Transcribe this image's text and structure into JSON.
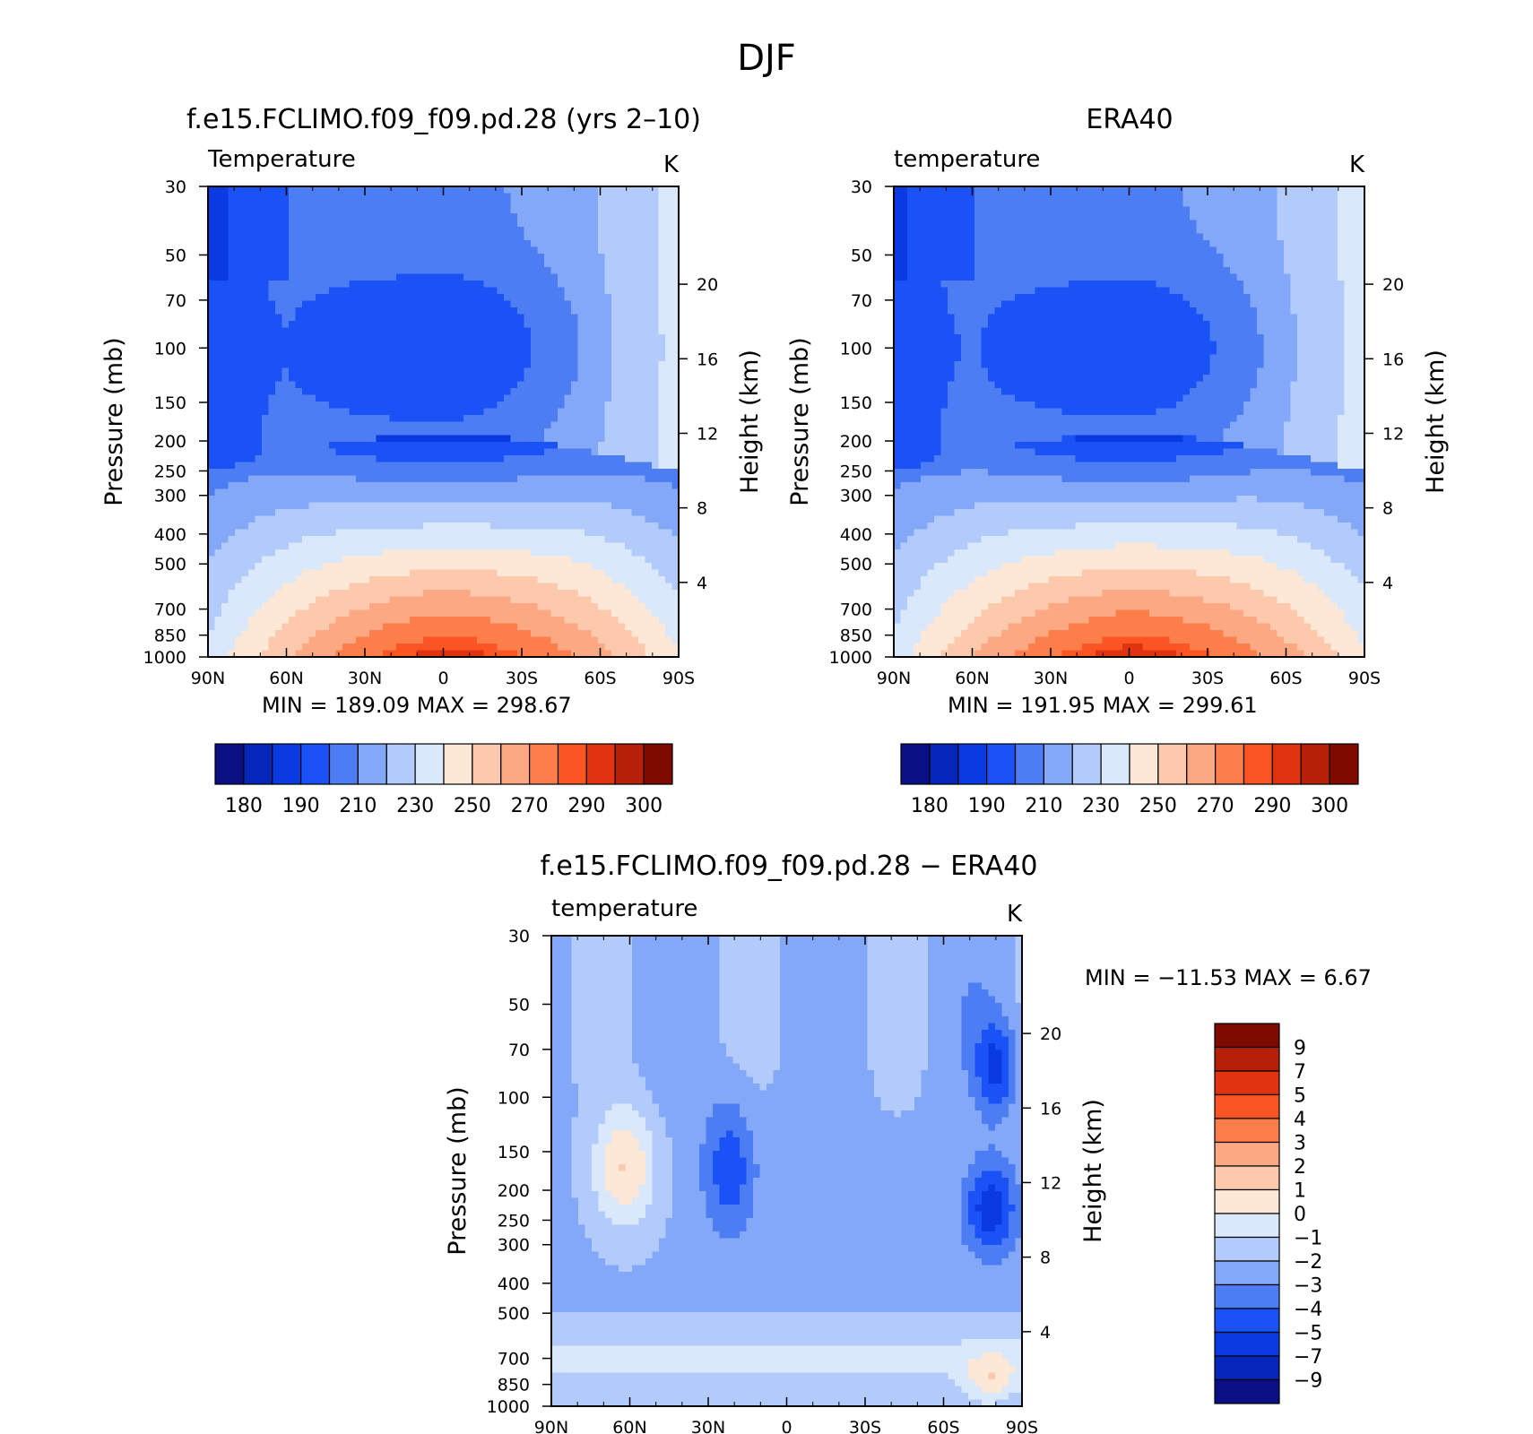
{
  "figure": {
    "title": "DJF"
  },
  "colors": {
    "abs_palette": [
      "#0b0f84",
      "#0526b8",
      "#0a3be0",
      "#1a52f5",
      "#4c7df2",
      "#82a8f7",
      "#b3cbfa",
      "#d9e8fb",
      "#fde7d6",
      "#fcc9ac",
      "#fba883",
      "#fc7e4b",
      "#fc5524",
      "#e23310",
      "#b72008",
      "#7f0a00"
    ],
    "diff_palette": [
      "#7f0a00",
      "#b72008",
      "#e23310",
      "#fc5524",
      "#fc7e4b",
      "#fba883",
      "#fcc9ac",
      "#fde7d6",
      "#d9e8fb",
      "#b3cbfa",
      "#82a8f7",
      "#4c7df2",
      "#1a52f5",
      "#0a3be0",
      "#0526b8",
      "#0b0f84"
    ]
  },
  "chart_data": [
    {
      "type": "heatmap",
      "title": "f.e15.FCLIMO.f09_f09.pd.28 (yrs 2–10)",
      "variable_label": "Temperature",
      "units": "K",
      "ylabel": "Pressure (mb)",
      "y2label": "Height (km)",
      "x_ticks": [
        "90N",
        "60N",
        "30N",
        "0",
        "30S",
        "60S",
        "90S"
      ],
      "y_ticks": [
        30,
        50,
        70,
        100,
        150,
        200,
        250,
        300,
        400,
        500,
        700,
        850,
        1000
      ],
      "y2_ticks": [
        20,
        16,
        12,
        8,
        4
      ],
      "ylim": [
        1000,
        30
      ],
      "y_scale": "log",
      "stats": {
        "min_label": "MIN =",
        "min": "189.09",
        "max_label": "MAX =",
        "max": "298.67"
      },
      "colorbar": {
        "orientation": "horizontal",
        "tick_labels": [
          "180",
          "190",
          "210",
          "230",
          "250",
          "270",
          "290",
          "300"
        ],
        "levels": [
          180,
          185,
          190,
          200,
          210,
          220,
          230,
          240,
          250,
          260,
          270,
          280,
          290,
          295,
          300
        ]
      },
      "contour_levels": [
        {
          "name": "t200",
          "value": 200,
          "color": "#1a52f5"
        },
        {
          "name": "t210",
          "value": 210,
          "color": "#4c7df2"
        },
        {
          "name": "t220",
          "value": 220,
          "color": "#82a8f7"
        },
        {
          "name": "t230",
          "value": 230,
          "color": "#b3cbfa"
        },
        {
          "name": "t240",
          "value": 240,
          "color": "#d9e8fb"
        },
        {
          "name": "t250",
          "value": 250,
          "color": "#fde7d6"
        },
        {
          "name": "t260",
          "value": 260,
          "color": "#fcc9ac"
        },
        {
          "name": "t270",
          "value": 270,
          "color": "#fba883"
        },
        {
          "name": "t280",
          "value": 280,
          "color": "#fc7e4b"
        },
        {
          "name": "t290",
          "value": 290,
          "color": "#fc5524"
        },
        {
          "name": "t295",
          "value": 295,
          "color": "#e23310"
        }
      ]
    },
    {
      "type": "heatmap",
      "title": "ERA40",
      "variable_label": "temperature",
      "units": "K",
      "ylabel": "Pressure (mb)",
      "y2label": "Height (km)",
      "x_ticks": [
        "90N",
        "60N",
        "30N",
        "0",
        "30S",
        "60S",
        "90S"
      ],
      "y_ticks": [
        30,
        50,
        70,
        100,
        150,
        200,
        250,
        300,
        400,
        500,
        700,
        850,
        1000
      ],
      "y2_ticks": [
        20,
        16,
        12,
        8,
        4
      ],
      "ylim": [
        1000,
        30
      ],
      "y_scale": "log",
      "stats": {
        "min_label": "MIN =",
        "min": "191.95",
        "max_label": "MAX =",
        "max": "299.61"
      },
      "colorbar": {
        "orientation": "horizontal",
        "tick_labels": [
          "180",
          "190",
          "210",
          "230",
          "250",
          "270",
          "290",
          "300"
        ],
        "levels": [
          180,
          185,
          190,
          200,
          210,
          220,
          230,
          240,
          250,
          260,
          270,
          280,
          290,
          295,
          300
        ]
      }
    },
    {
      "type": "heatmap",
      "title": "f.e15.FCLIMO.f09_f09.pd.28 − ERA40",
      "variable_label": "temperature",
      "units": "K",
      "ylabel": "Pressure (mb)",
      "y2label": "Height (km)",
      "x_ticks": [
        "90N",
        "60N",
        "30N",
        "0",
        "30S",
        "60S",
        "90S"
      ],
      "y_ticks": [
        30,
        50,
        70,
        100,
        150,
        200,
        250,
        300,
        400,
        500,
        700,
        850,
        1000
      ],
      "y2_ticks": [
        20,
        16,
        12,
        8,
        4
      ],
      "ylim": [
        1000,
        30
      ],
      "y_scale": "log",
      "stats": {
        "min_label": "MIN =",
        "min": "−11.53",
        "max_label": "MAX =",
        "max": "6.67"
      },
      "colorbar": {
        "orientation": "vertical",
        "tick_labels": [
          "9",
          "7",
          "5",
          "4",
          "3",
          "2",
          "1",
          "0",
          "−1",
          "−2",
          "−3",
          "−4",
          "−5",
          "−7",
          "−9"
        ]
      }
    }
  ]
}
